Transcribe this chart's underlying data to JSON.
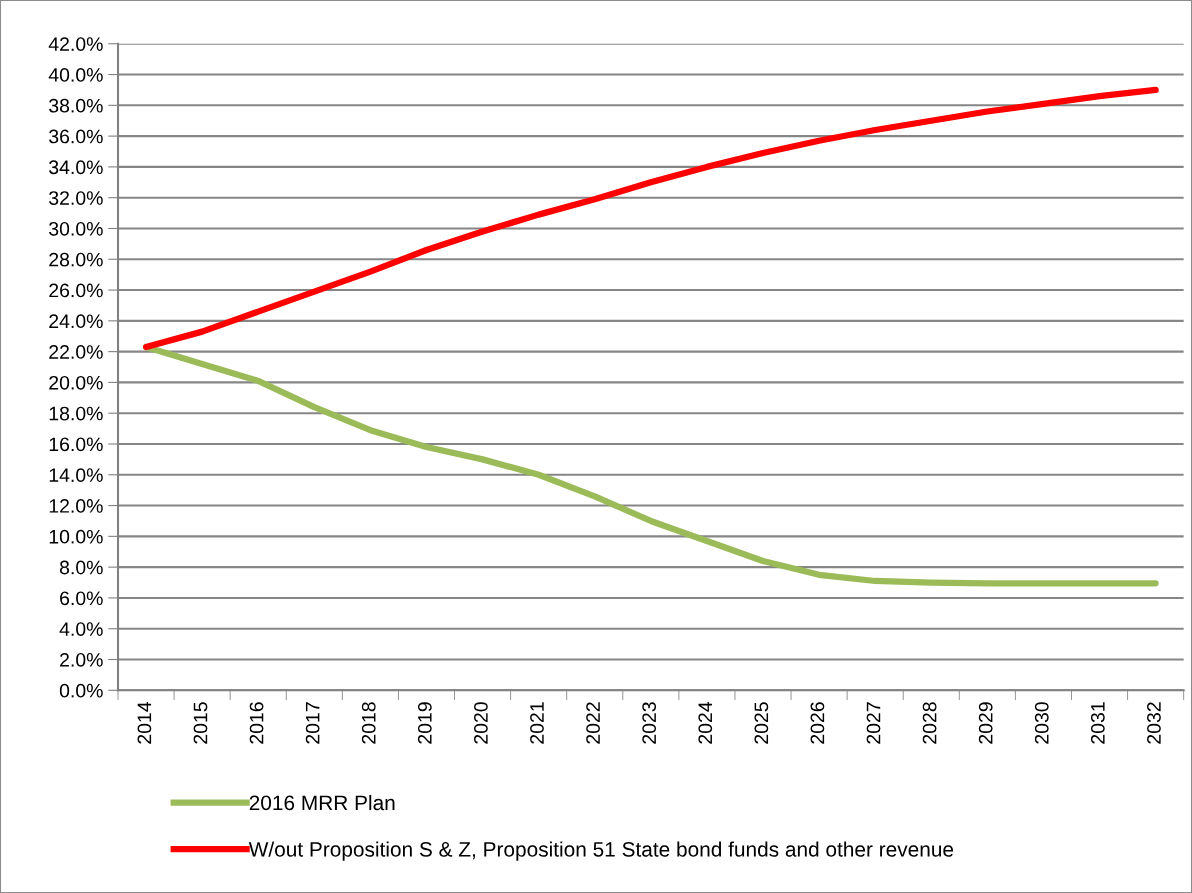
{
  "chart_data": {
    "type": "line",
    "categories": [
      "2014",
      "2015",
      "2016",
      "2017",
      "2018",
      "2019",
      "2020",
      "2021",
      "2022",
      "2023",
      "2024",
      "2025",
      "2026",
      "2027",
      "2028",
      "2029",
      "2030",
      "2031",
      "2032"
    ],
    "series": [
      {
        "name": "2016 MRR Plan",
        "color": "#9bbb59",
        "values": [
          22.3,
          21.2,
          20.1,
          18.4,
          16.9,
          15.8,
          15.0,
          14.0,
          12.6,
          11.0,
          9.7,
          8.4,
          7.5,
          7.1,
          7.0,
          6.95,
          6.95,
          6.95,
          6.95
        ]
      },
      {
        "name": "W/out Proposition S & Z, Proposition 51 State bond funds and other revenue",
        "color": "#ff0000",
        "values": [
          22.3,
          23.3,
          24.6,
          25.9,
          27.2,
          28.6,
          29.8,
          30.9,
          31.9,
          33.0,
          34.0,
          34.9,
          35.7,
          36.4,
          37.0,
          37.6,
          38.1,
          38.6,
          39.0
        ]
      }
    ],
    "ylim": [
      0,
      42
    ],
    "yticks": [
      {
        "value": 0,
        "label": "0.0%"
      },
      {
        "value": 2,
        "label": "2.0%"
      },
      {
        "value": 4,
        "label": "4.0%"
      },
      {
        "value": 6,
        "label": "6.0%"
      },
      {
        "value": 8,
        "label": "8.0%"
      },
      {
        "value": 10,
        "label": "10.0%"
      },
      {
        "value": 12,
        "label": "12.0%"
      },
      {
        "value": 14,
        "label": "14.0%"
      },
      {
        "value": 16,
        "label": "16.0%"
      },
      {
        "value": 18,
        "label": "18.0%"
      },
      {
        "value": 20,
        "label": "20.0%"
      },
      {
        "value": 22,
        "label": "22.0%"
      },
      {
        "value": 24,
        "label": "24.0%"
      },
      {
        "value": 26,
        "label": "26.0%"
      },
      {
        "value": 28,
        "label": "28.0%"
      },
      {
        "value": 30,
        "label": "30.0%"
      },
      {
        "value": 32,
        "label": "32.0%"
      },
      {
        "value": 34,
        "label": "34.0%"
      },
      {
        "value": 36,
        "label": "36.0%"
      },
      {
        "value": 38,
        "label": "38.0%"
      },
      {
        "value": 40,
        "label": "40.0%"
      },
      {
        "value": 42,
        "label": "42.0%"
      }
    ],
    "grid": "y",
    "legend": "bottom",
    "marker": "none",
    "line_style": "solid"
  }
}
